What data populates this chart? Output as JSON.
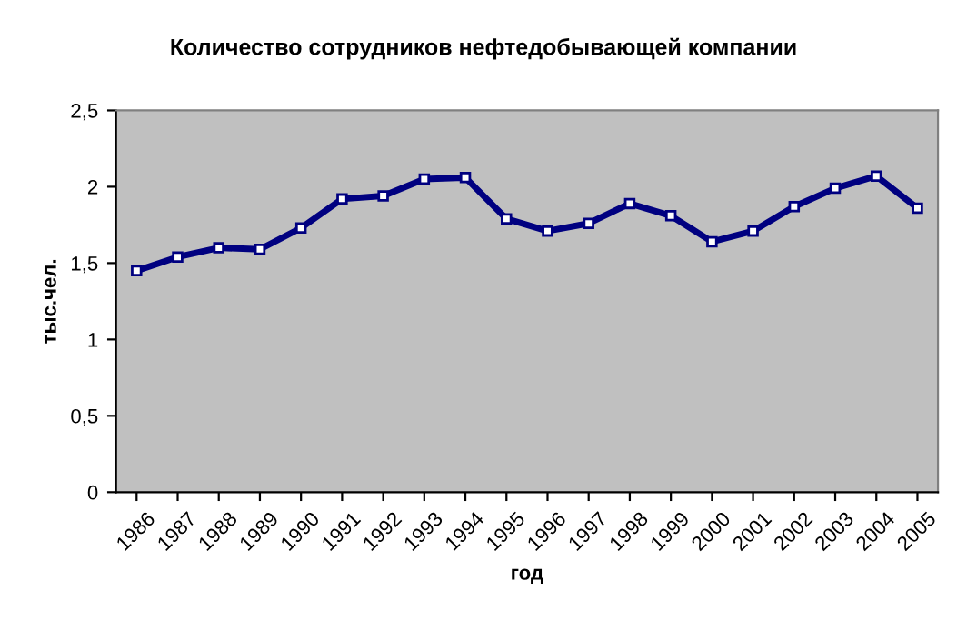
{
  "chart_data": {
    "type": "line",
    "title": "Количество сотрудников нефтедобывающей компании",
    "xlabel": "год",
    "ylabel": "тыс.чел.",
    "categories": [
      "1986",
      "1987",
      "1988",
      "1989",
      "1990",
      "1991",
      "1992",
      "1993",
      "1994",
      "1995",
      "1996",
      "1997",
      "1998",
      "1999",
      "2000",
      "2001",
      "2002",
      "2003",
      "2004",
      "2005"
    ],
    "series": [
      {
        "color": "#000080",
        "values": [
          1.45,
          1.54,
          1.6,
          1.59,
          1.73,
          1.92,
          1.94,
          2.05,
          2.06,
          1.79,
          1.71,
          1.76,
          1.89,
          1.81,
          1.64,
          1.71,
          1.87,
          1.99,
          2.07,
          1.86
        ]
      }
    ],
    "ylim": [
      0,
      2.5
    ],
    "yticks": [
      0,
      {
        "value": 0.5,
        "label": "0,5"
      },
      1,
      {
        "value": 1.5,
        "label": "1,5"
      },
      2,
      {
        "value": 2.5,
        "label": "2,5"
      }
    ],
    "grid": false,
    "legend": false,
    "marker": "square",
    "line_style": "solid"
  }
}
